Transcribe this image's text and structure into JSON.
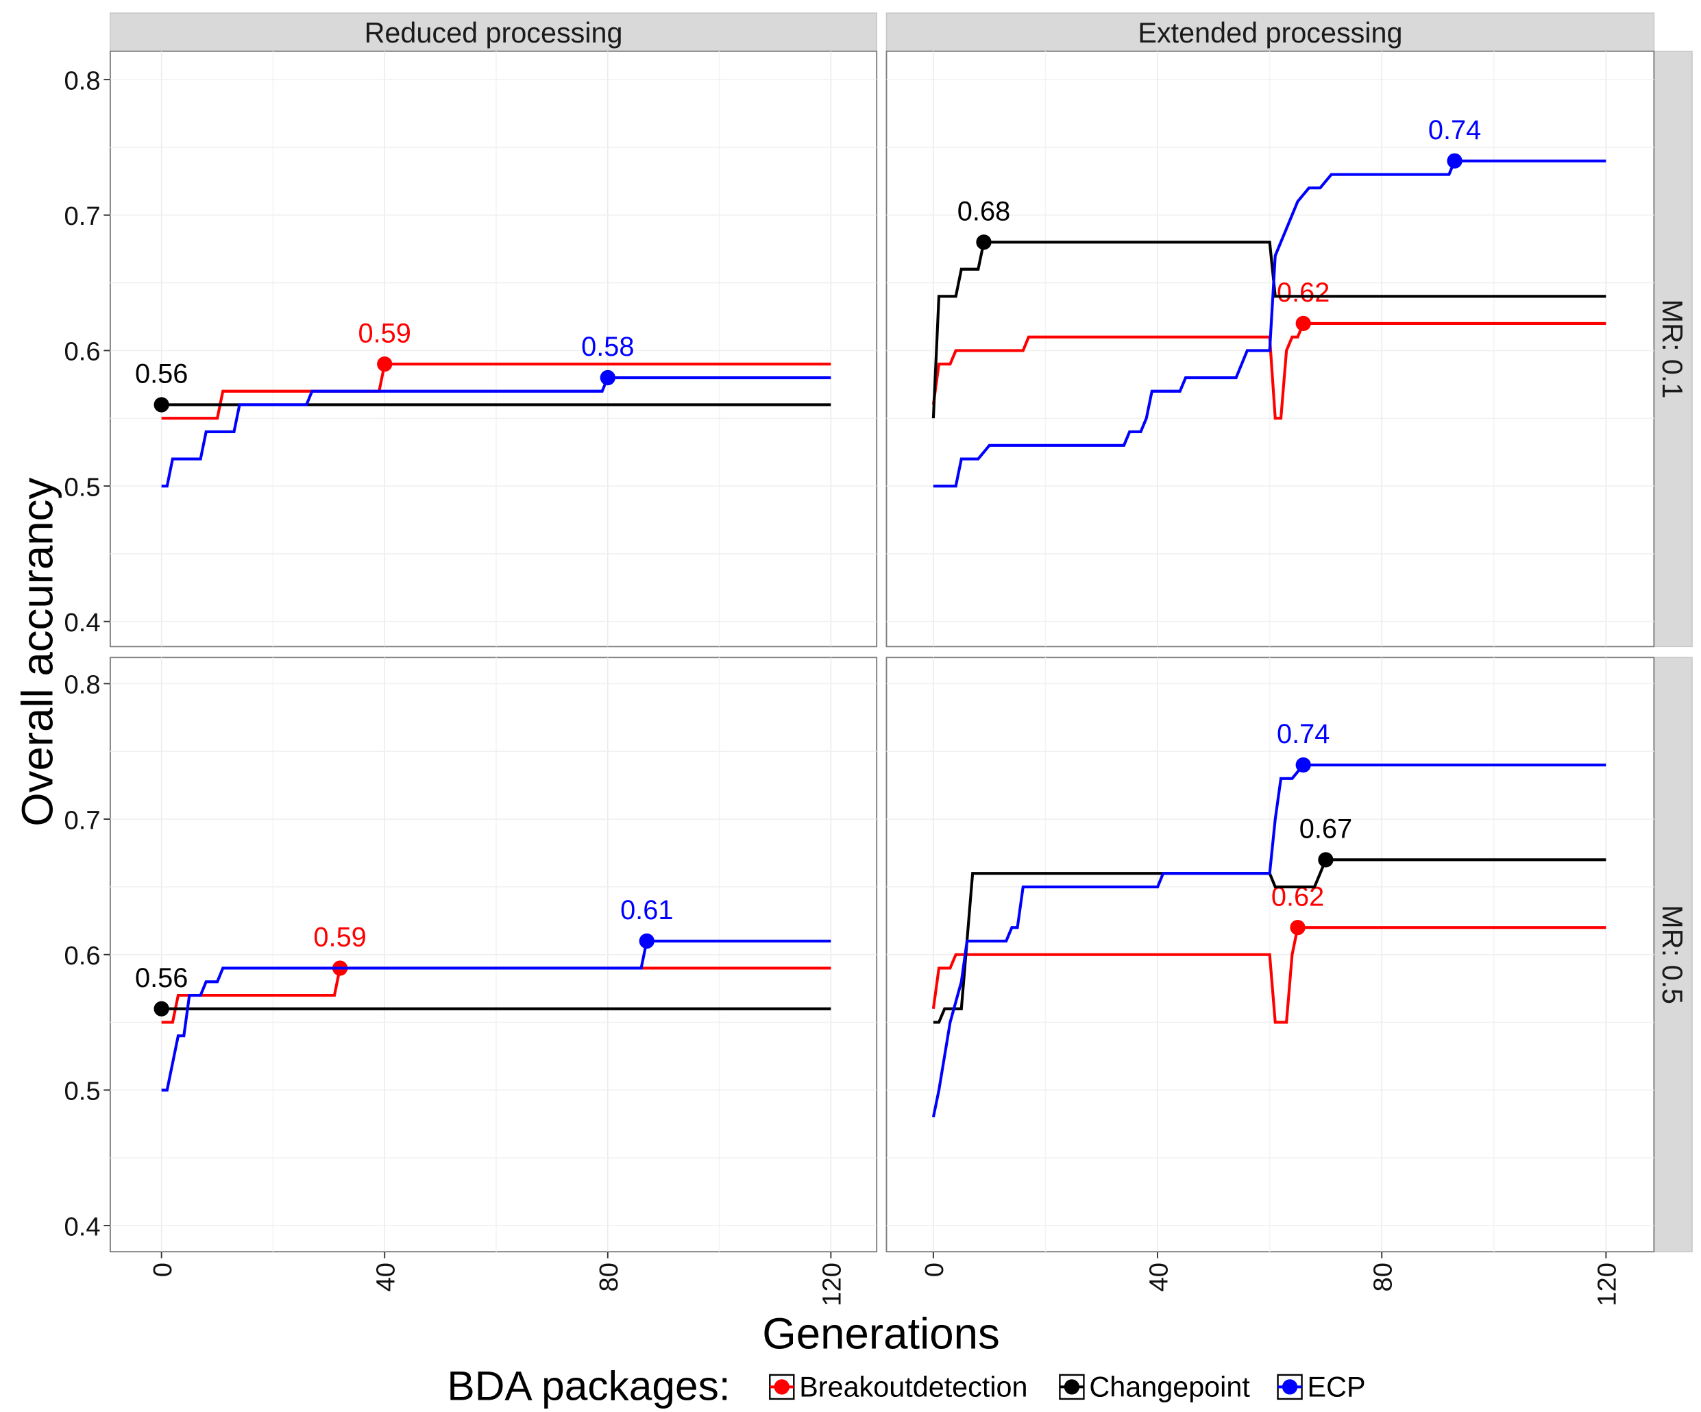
{
  "chart_data": {
    "type": "line",
    "xlabel": "Generations",
    "ylabel": "Overall accurancy",
    "xlim": [
      0,
      120
    ],
    "ylim": [
      0.4,
      0.8
    ],
    "xticks": [
      "0",
      "40",
      "80",
      "120"
    ],
    "xtick_values": [
      0,
      40,
      80,
      120
    ],
    "yticks": [
      "0.4",
      "0.5",
      "0.6",
      "0.7",
      "0.8"
    ],
    "ytick_values": [
      0.4,
      0.5,
      0.6,
      0.7,
      0.8
    ],
    "grid": true,
    "legend": {
      "title": "BDA packages:",
      "placement": "bottom",
      "entries": [
        {
          "name": "Breakoutdetection",
          "color": "#ff0000"
        },
        {
          "name": "Changepoint",
          "color": "#000000"
        },
        {
          "name": "ECP",
          "color": "#0000ff"
        }
      ]
    },
    "column_facets": [
      "Reduced processing",
      "Extended processing"
    ],
    "row_facets": [
      "MR: 0.1",
      "MR: 0.5"
    ],
    "panels": [
      {
        "column": 0,
        "row": 0,
        "series": [
          {
            "name": "Breakoutdetection",
            "x": [
              0,
              10,
              11,
              39,
              40,
              120
            ],
            "y": [
              0.55,
              0.55,
              0.57,
              0.57,
              0.59,
              0.59
            ],
            "peak": {
              "x": 40,
              "y": 0.59,
              "label": "0.59"
            }
          },
          {
            "name": "Changepoint",
            "x": [
              0,
              120
            ],
            "y": [
              0.56,
              0.56
            ],
            "peak": {
              "x": 0,
              "y": 0.56,
              "label": "0.56"
            }
          },
          {
            "name": "ECP",
            "x": [
              0,
              1,
              2,
              7,
              8,
              13,
              14,
              26,
              27,
              79,
              80,
              120
            ],
            "y": [
              0.5,
              0.5,
              0.52,
              0.52,
              0.54,
              0.54,
              0.56,
              0.56,
              0.57,
              0.57,
              0.58,
              0.58
            ],
            "peak": {
              "x": 80,
              "y": 0.58,
              "label": "0.58"
            }
          }
        ]
      },
      {
        "column": 1,
        "row": 0,
        "series": [
          {
            "name": "Breakoutdetection",
            "x": [
              0,
              1,
              3,
              4,
              16,
              17,
              60,
              61,
              62,
              63,
              64,
              65,
              66,
              120
            ],
            "y": [
              0.56,
              0.59,
              0.59,
              0.6,
              0.6,
              0.61,
              0.61,
              0.55,
              0.55,
              0.6,
              0.61,
              0.61,
              0.62,
              0.62
            ],
            "peak": {
              "x": 66,
              "y": 0.62,
              "label": "0.62"
            }
          },
          {
            "name": "Changepoint",
            "x": [
              0,
              1,
              4,
              5,
              8,
              9,
              60,
              61,
              120
            ],
            "y": [
              0.55,
              0.64,
              0.64,
              0.66,
              0.66,
              0.68,
              0.68,
              0.64,
              0.64
            ],
            "peak": {
              "x": 9,
              "y": 0.68,
              "label": "0.68"
            }
          },
          {
            "name": "ECP",
            "x": [
              0,
              4,
              5,
              8,
              10,
              34,
              35,
              37,
              38,
              39,
              44,
              45,
              54,
              56,
              60,
              61,
              63,
              65,
              67,
              69,
              71,
              92,
              93,
              120
            ],
            "y": [
              0.5,
              0.5,
              0.52,
              0.52,
              0.53,
              0.53,
              0.54,
              0.54,
              0.55,
              0.57,
              0.57,
              0.58,
              0.58,
              0.6,
              0.6,
              0.67,
              0.69,
              0.71,
              0.72,
              0.72,
              0.73,
              0.73,
              0.74,
              0.74
            ],
            "peak": {
              "x": 93,
              "y": 0.74,
              "label": "0.74"
            }
          }
        ]
      },
      {
        "column": 0,
        "row": 1,
        "series": [
          {
            "name": "Breakoutdetection",
            "x": [
              0,
              2,
              3,
              31,
              32,
              120
            ],
            "y": [
              0.55,
              0.55,
              0.57,
              0.57,
              0.59,
              0.59
            ],
            "peak": {
              "x": 32,
              "y": 0.59,
              "label": "0.59"
            }
          },
          {
            "name": "Changepoint",
            "x": [
              0,
              120
            ],
            "y": [
              0.56,
              0.56
            ],
            "peak": {
              "x": 0,
              "y": 0.56,
              "label": "0.56"
            }
          },
          {
            "name": "ECP",
            "x": [
              0,
              1,
              3,
              4,
              5,
              7,
              8,
              10,
              11,
              86,
              87,
              120
            ],
            "y": [
              0.5,
              0.5,
              0.54,
              0.54,
              0.57,
              0.57,
              0.58,
              0.58,
              0.59,
              0.59,
              0.61,
              0.61
            ],
            "peak": {
              "x": 87,
              "y": 0.61,
              "label": "0.61"
            }
          }
        ]
      },
      {
        "column": 1,
        "row": 1,
        "series": [
          {
            "name": "Breakoutdetection",
            "x": [
              0,
              1,
              3,
              4,
              60,
              61,
              63,
              64,
              65,
              120
            ],
            "y": [
              0.56,
              0.59,
              0.59,
              0.6,
              0.6,
              0.55,
              0.55,
              0.6,
              0.62,
              0.62
            ],
            "peak": {
              "x": 65,
              "y": 0.62,
              "label": "0.62"
            }
          },
          {
            "name": "Changepoint",
            "x": [
              0,
              1,
              2,
              5,
              7,
              60,
              61,
              68,
              69,
              70,
              120
            ],
            "y": [
              0.55,
              0.55,
              0.56,
              0.56,
              0.66,
              0.66,
              0.65,
              0.65,
              0.66,
              0.67,
              0.67
            ],
            "peak": {
              "x": 70,
              "y": 0.67,
              "label": "0.67"
            }
          },
          {
            "name": "ECP",
            "x": [
              0,
              1,
              3,
              5,
              6,
              13,
              14,
              15,
              16,
              40,
              41,
              60,
              61,
              62,
              64,
              66,
              120
            ],
            "y": [
              0.48,
              0.5,
              0.55,
              0.58,
              0.61,
              0.61,
              0.62,
              0.62,
              0.65,
              0.65,
              0.66,
              0.66,
              0.7,
              0.73,
              0.73,
              0.74,
              0.74
            ],
            "peak": {
              "x": 66,
              "y": 0.74,
              "label": "0.74"
            }
          }
        ]
      }
    ]
  }
}
